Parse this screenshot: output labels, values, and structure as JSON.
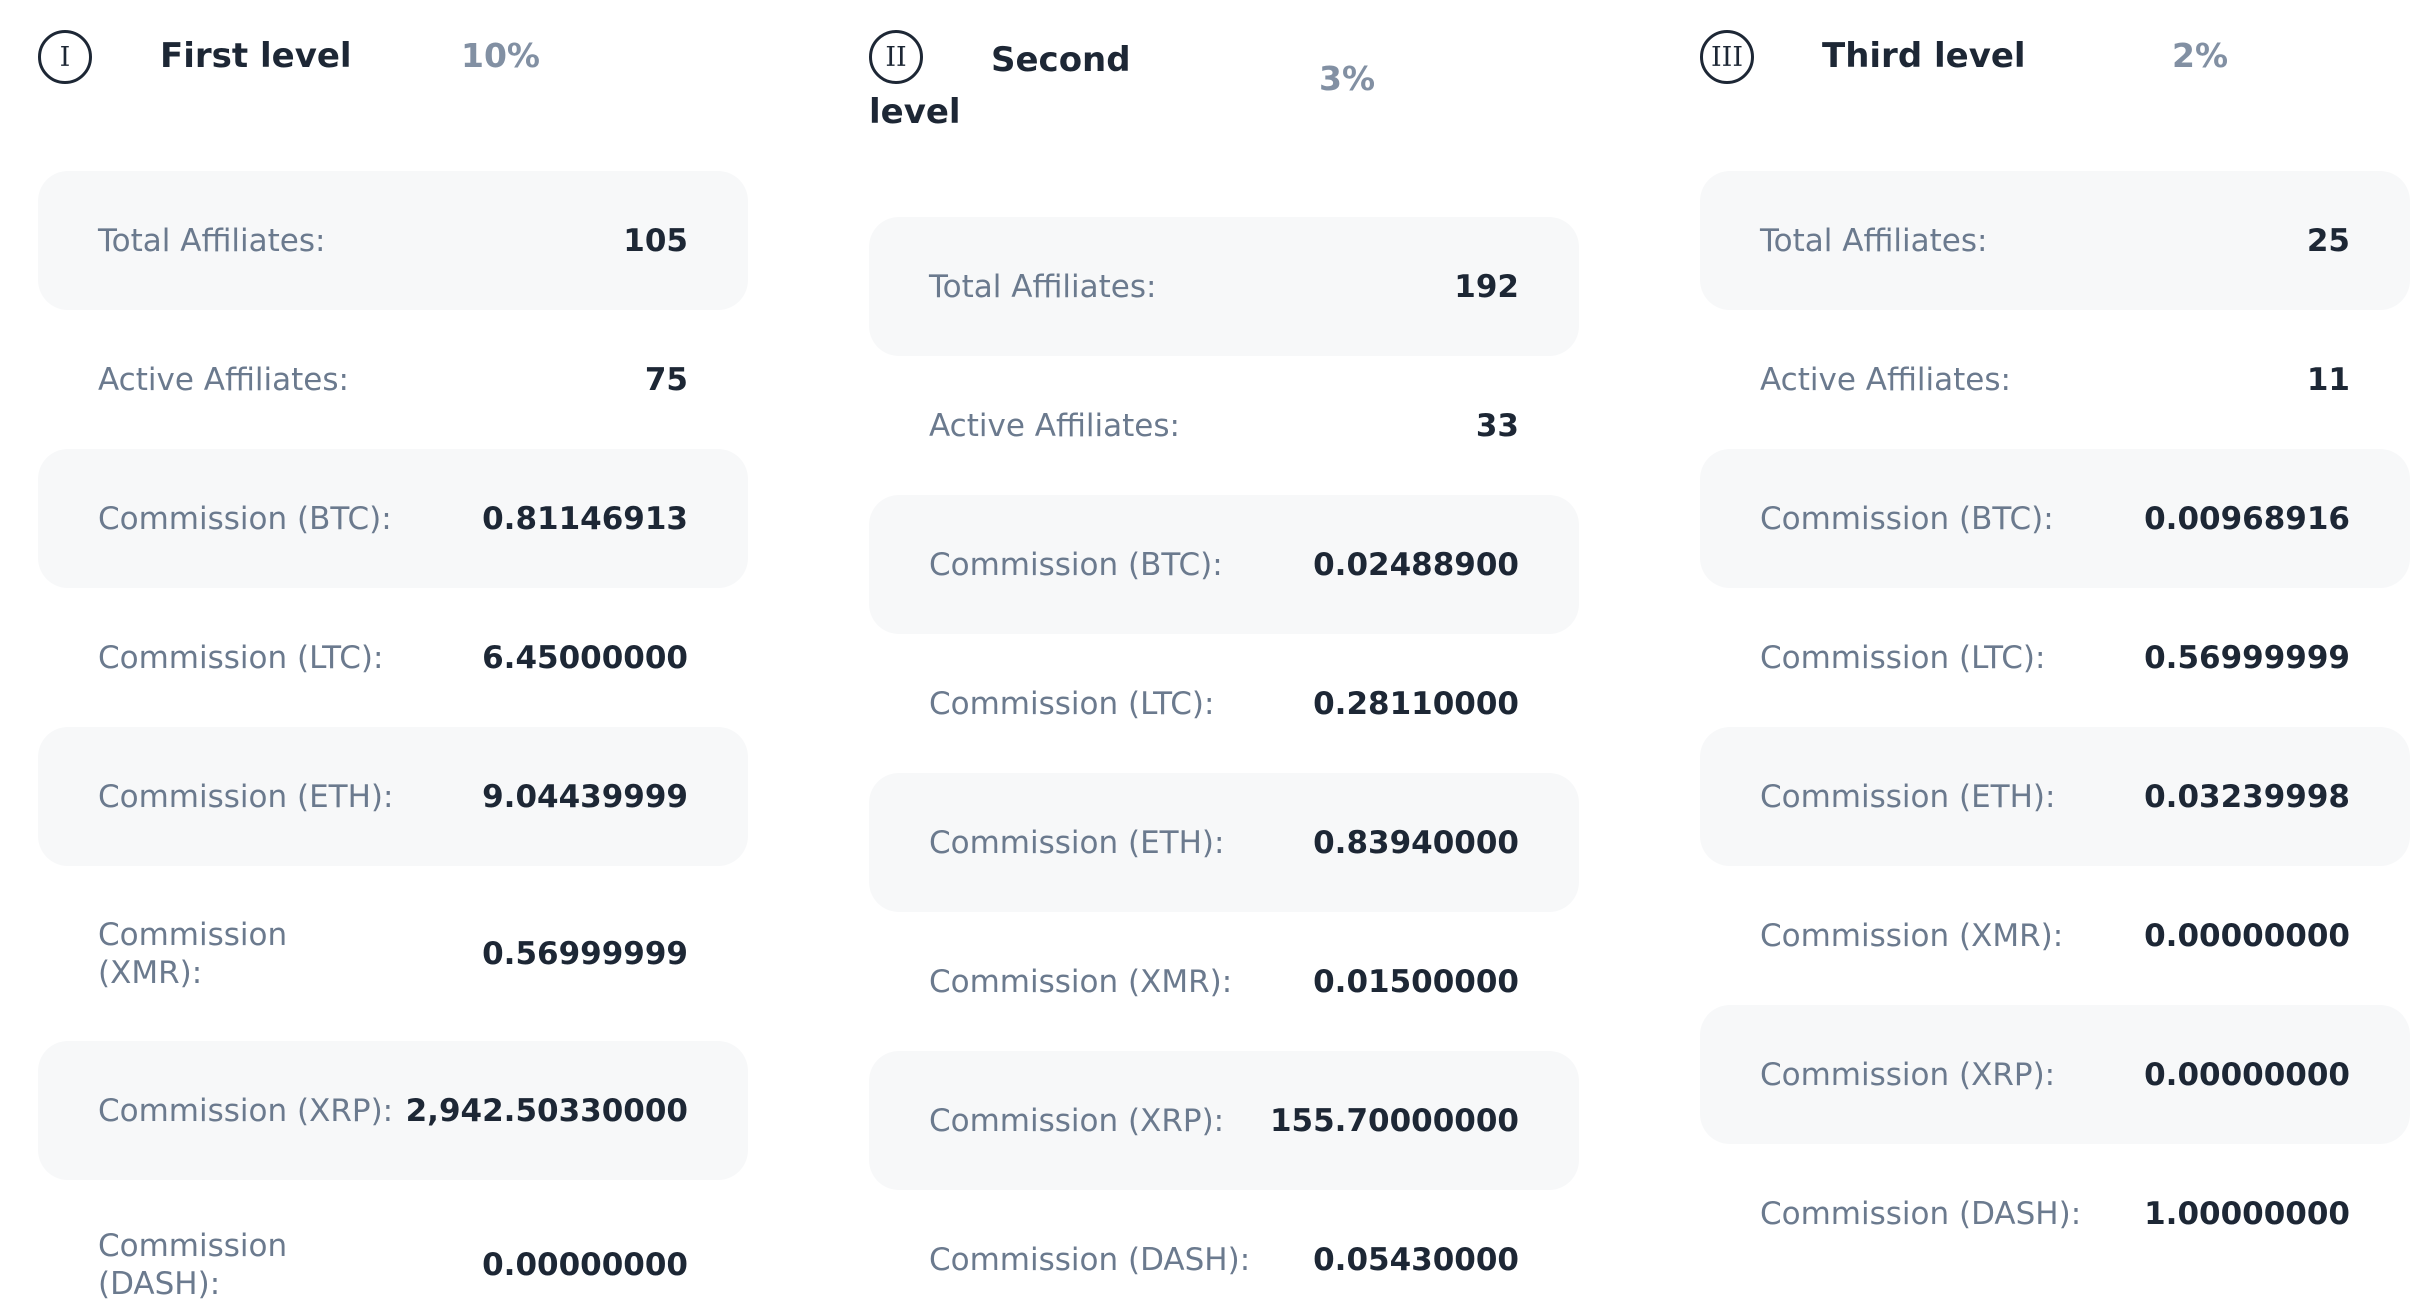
{
  "levels": [
    {
      "roman": "I",
      "title": "First level",
      "percent": "10%",
      "rows": [
        {
          "label": "Total Affiliates:",
          "value": "105"
        },
        {
          "label": "Active Affiliates:",
          "value": "75"
        },
        {
          "label": "Commission (BTC):",
          "value": "0.81146913"
        },
        {
          "label": "Commission (LTC):",
          "value": "6.45000000"
        },
        {
          "label": "Commission (ETH):",
          "value": "9.04439999"
        },
        {
          "label": "Commission (XMR):",
          "value": "0.56999999"
        },
        {
          "label": "Commission (XRP):",
          "value": "2,942.50330000"
        },
        {
          "label": "Commission (DASH):",
          "value": "0.00000000"
        }
      ]
    },
    {
      "roman": "II",
      "title": "Second level",
      "percent": "3%",
      "rows": [
        {
          "label": "Total Affiliates:",
          "value": "192"
        },
        {
          "label": "Active Affiliates:",
          "value": "33"
        },
        {
          "label": "Commission (BTC):",
          "value": "0.02488900"
        },
        {
          "label": "Commission (LTC):",
          "value": "0.28110000"
        },
        {
          "label": "Commission (ETH):",
          "value": "0.83940000"
        },
        {
          "label": "Commission (XMR):",
          "value": "0.01500000"
        },
        {
          "label": "Commission (XRP):",
          "value": "155.70000000"
        },
        {
          "label": "Commission (DASH):",
          "value": "0.05430000"
        }
      ]
    },
    {
      "roman": "III",
      "title": "Third level",
      "percent": "2%",
      "rows": [
        {
          "label": "Total Affiliates:",
          "value": "25"
        },
        {
          "label": "Active Affiliates:",
          "value": "11"
        },
        {
          "label": "Commission (BTC):",
          "value": "0.00968916"
        },
        {
          "label": "Commission (LTC):",
          "value": "0.56999999"
        },
        {
          "label": "Commission (ETH):",
          "value": "0.03239998"
        },
        {
          "label": "Commission (XMR):",
          "value": "0.00000000"
        },
        {
          "label": "Commission (XRP):",
          "value": "0.00000000"
        },
        {
          "label": "Commission (DASH):",
          "value": "1.00000000"
        }
      ]
    }
  ]
}
